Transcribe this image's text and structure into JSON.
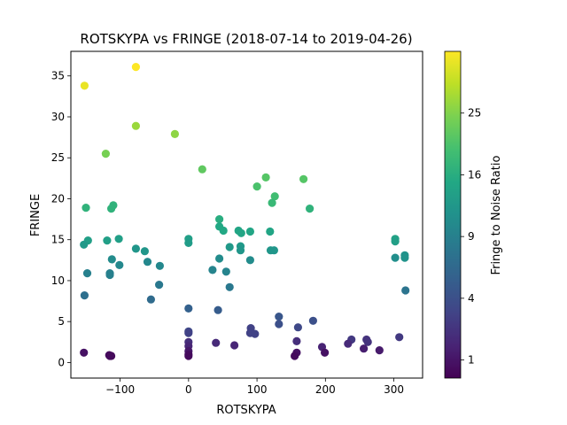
{
  "figure": {
    "title": "ROTSKYPA vs FRINGE (2018-07-14 to 2019-04-26)",
    "xlabel": "ROTSKYPA",
    "ylabel": "FRINGE",
    "colorbar_label": "Fringe to Noise Ratio"
  },
  "chart_data": {
    "type": "scatter",
    "title": "ROTSKYPA vs FRINGE (2018-07-14 to 2019-04-26)",
    "xlabel": "ROTSKYPA",
    "ylabel": "FRINGE",
    "xlim": [
      -172,
      342
    ],
    "ylim": [
      -1.9,
      38.0
    ],
    "xticks": [
      -100,
      0,
      100,
      200,
      300
    ],
    "yticks": [
      0,
      5,
      10,
      15,
      20,
      25,
      30,
      35
    ],
    "grid": false,
    "colormap": "viridis",
    "colorbar": {
      "label": "Fringe to Noise Ratio",
      "ticks": [
        1,
        4,
        9,
        16,
        25
      ],
      "scale": "sqrt",
      "range": [
        0.5,
        36
      ]
    },
    "points": [
      {
        "x": -152,
        "y": 33.8,
        "c": 34
      },
      {
        "x": -77,
        "y": 36.1,
        "c": 36
      },
      {
        "x": -77,
        "y": 28.9,
        "c": 27
      },
      {
        "x": -20,
        "y": 27.9,
        "c": 26
      },
      {
        "x": -121,
        "y": 25.5,
        "c": 24
      },
      {
        "x": 20,
        "y": 23.6,
        "c": 22
      },
      {
        "x": 113,
        "y": 22.6,
        "c": 21
      },
      {
        "x": 168,
        "y": 22.4,
        "c": 21
      },
      {
        "x": 100,
        "y": 21.5,
        "c": 20
      },
      {
        "x": 126,
        "y": 20.3,
        "c": 19
      },
      {
        "x": 122,
        "y": 19.5,
        "c": 18
      },
      {
        "x": -150,
        "y": 18.9,
        "c": 17
      },
      {
        "x": -110,
        "y": 19.2,
        "c": 17
      },
      {
        "x": -113,
        "y": 18.8,
        "c": 17
      },
      {
        "x": 177,
        "y": 18.8,
        "c": 17
      },
      {
        "x": 45,
        "y": 17.5,
        "c": 16
      },
      {
        "x": 45,
        "y": 16.6,
        "c": 15
      },
      {
        "x": 51,
        "y": 16.1,
        "c": 15
      },
      {
        "x": 73,
        "y": 16.1,
        "c": 14.5
      },
      {
        "x": 77,
        "y": 15.8,
        "c": 14.5
      },
      {
        "x": 90,
        "y": 16.0,
        "c": 14.5
      },
      {
        "x": 119,
        "y": 16.0,
        "c": 14.5
      },
      {
        "x": -147,
        "y": 14.9,
        "c": 13.5
      },
      {
        "x": -119,
        "y": 14.9,
        "c": 13.5
      },
      {
        "x": -102,
        "y": 15.1,
        "c": 13.5
      },
      {
        "x": 0,
        "y": 15.1,
        "c": 13.5
      },
      {
        "x": 0,
        "y": 14.6,
        "c": 13
      },
      {
        "x": -153,
        "y": 14.4,
        "c": 12.5
      },
      {
        "x": 60,
        "y": 14.1,
        "c": 12.5
      },
      {
        "x": 76,
        "y": 14.2,
        "c": 12.5
      },
      {
        "x": 76,
        "y": 13.7,
        "c": 12
      },
      {
        "x": 120,
        "y": 13.7,
        "c": 12
      },
      {
        "x": 125,
        "y": 13.7,
        "c": 12
      },
      {
        "x": 302,
        "y": 15.1,
        "c": 14
      },
      {
        "x": 302,
        "y": 14.8,
        "c": 13.5
      },
      {
        "x": 316,
        "y": 13.1,
        "c": 11.5
      },
      {
        "x": 316,
        "y": 12.8,
        "c": 11.5
      },
      {
        "x": 302,
        "y": 12.8,
        "c": 11
      },
      {
        "x": -77,
        "y": 13.9,
        "c": 12
      },
      {
        "x": -64,
        "y": 13.6,
        "c": 12
      },
      {
        "x": -112,
        "y": 12.6,
        "c": 10.5
      },
      {
        "x": 45,
        "y": 12.7,
        "c": 10.5
      },
      {
        "x": 90,
        "y": 12.5,
        "c": 10.5
      },
      {
        "x": -60,
        "y": 12.3,
        "c": 10
      },
      {
        "x": -101,
        "y": 11.9,
        "c": 10
      },
      {
        "x": -42,
        "y": 11.8,
        "c": 10
      },
      {
        "x": 35,
        "y": 11.3,
        "c": 9.5
      },
      {
        "x": 55,
        "y": 11.1,
        "c": 9.5
      },
      {
        "x": -148,
        "y": 10.9,
        "c": 9
      },
      {
        "x": -115,
        "y": 10.9,
        "c": 9
      },
      {
        "x": -115,
        "y": 10.7,
        "c": 9
      },
      {
        "x": -43,
        "y": 9.5,
        "c": 8
      },
      {
        "x": 60,
        "y": 9.2,
        "c": 8
      },
      {
        "x": 317,
        "y": 8.8,
        "c": 7.5
      },
      {
        "x": -152,
        "y": 8.2,
        "c": 7
      },
      {
        "x": -55,
        "y": 7.7,
        "c": 6.5
      },
      {
        "x": 0,
        "y": 6.6,
        "c": 5.5
      },
      {
        "x": 43,
        "y": 6.4,
        "c": 5
      },
      {
        "x": 132,
        "y": 5.6,
        "c": 4.5
      },
      {
        "x": 132,
        "y": 4.7,
        "c": 4
      },
      {
        "x": 182,
        "y": 5.1,
        "c": 4
      },
      {
        "x": 160,
        "y": 4.3,
        "c": 3.5
      },
      {
        "x": 0,
        "y": 3.8,
        "c": 3.5
      },
      {
        "x": 0,
        "y": 3.6,
        "c": 3
      },
      {
        "x": 91,
        "y": 4.2,
        "c": 3
      },
      {
        "x": 90,
        "y": 3.6,
        "c": 3
      },
      {
        "x": 97,
        "y": 3.5,
        "c": 3
      },
      {
        "x": 308,
        "y": 3.1,
        "c": 2.5
      },
      {
        "x": 238,
        "y": 2.8,
        "c": 2.5
      },
      {
        "x": 260,
        "y": 2.8,
        "c": 2.2
      },
      {
        "x": 262,
        "y": 2.5,
        "c": 2.2
      },
      {
        "x": 158,
        "y": 2.6,
        "c": 2
      },
      {
        "x": 0,
        "y": 2.5,
        "c": 2
      },
      {
        "x": 40,
        "y": 2.4,
        "c": 1.8
      },
      {
        "x": 233,
        "y": 2.3,
        "c": 1.8
      },
      {
        "x": 0,
        "y": 2.0,
        "c": 1.6
      },
      {
        "x": 67,
        "y": 2.1,
        "c": 1.6
      },
      {
        "x": 195,
        "y": 1.9,
        "c": 1.5
      },
      {
        "x": 256,
        "y": 1.7,
        "c": 1.3
      },
      {
        "x": 279,
        "y": 1.5,
        "c": 1.2
      },
      {
        "x": 0,
        "y": 1.4,
        "c": 1.1
      },
      {
        "x": -153,
        "y": 1.2,
        "c": 0.9
      },
      {
        "x": 158,
        "y": 1.2,
        "c": 0.9
      },
      {
        "x": 199,
        "y": 1.2,
        "c": 0.9
      },
      {
        "x": 0,
        "y": 1.0,
        "c": 0.8
      },
      {
        "x": -116,
        "y": 0.9,
        "c": 0.7
      },
      {
        "x": -115,
        "y": 0.8,
        "c": 0.7
      },
      {
        "x": -113,
        "y": 0.8,
        "c": 0.7
      },
      {
        "x": 0,
        "y": 0.8,
        "c": 0.7
      },
      {
        "x": 155,
        "y": 0.8,
        "c": 0.7
      }
    ]
  }
}
